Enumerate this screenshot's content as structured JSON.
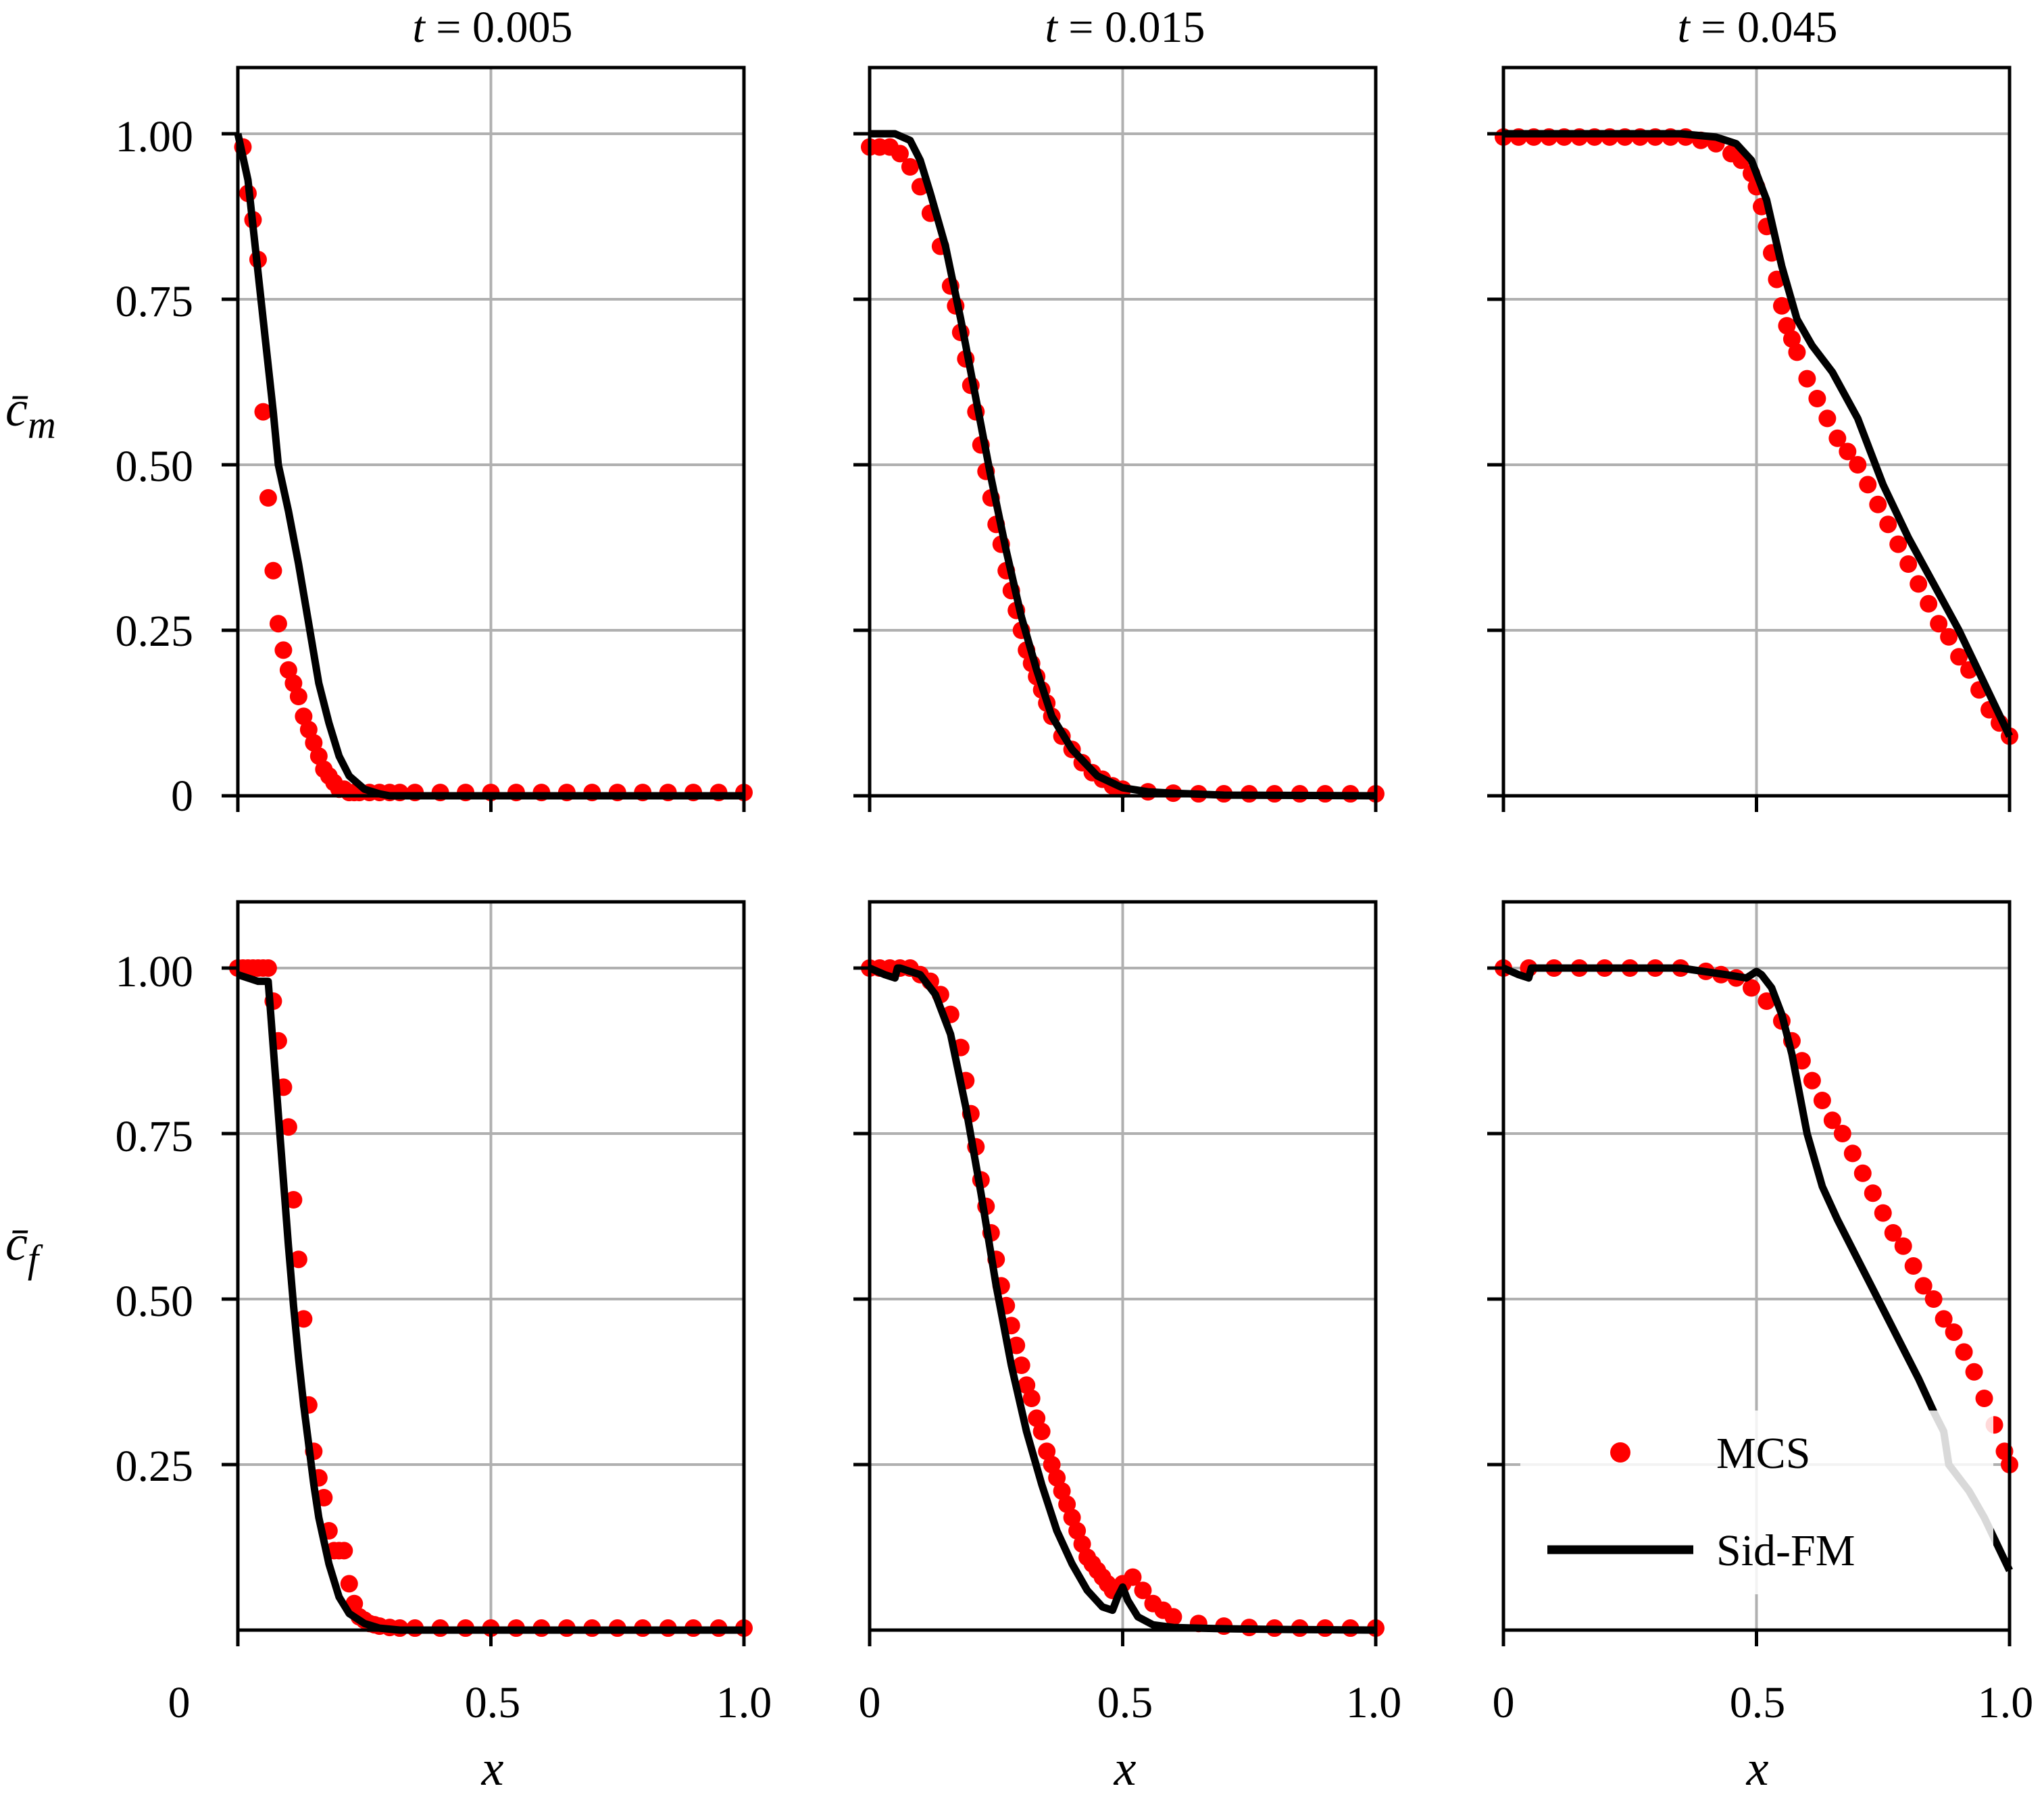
{
  "figure": {
    "colors": {
      "mcs": "#ff0000",
      "sid_fm": "#000000",
      "grid": "#b0b0b0",
      "frame": "#000000"
    },
    "col_titles": [
      {
        "t_label": "t",
        "value_label": " = 0.005"
      },
      {
        "t_label": "t",
        "value_label": " = 0.015"
      },
      {
        "t_label": "t",
        "value_label": " = 0.045"
      }
    ],
    "row_ylabels": [
      {
        "base": "c̄",
        "sub": "m"
      },
      {
        "base": "c̄",
        "sub": "f"
      }
    ],
    "xlabel": "x",
    "x_tick_labels": [
      "0",
      "0.5",
      "1.0"
    ],
    "y_tick_labels_top": [
      "0",
      "0.25",
      "0.50",
      "0.75",
      "1.00"
    ],
    "y_tick_labels_bottom": [
      "0.25",
      "0.50",
      "0.75",
      "1.00"
    ],
    "legend": {
      "mcs_label": "MCS",
      "sid_label": "Sid-FM",
      "position": "lower-right of bottom-right panel"
    }
  },
  "chart_data": [
    {
      "id": "cm_t0.005",
      "type": "line+scatter",
      "row": 0,
      "col": 0,
      "title": "t = 0.005",
      "xlabel": "",
      "ylabel": "c̄_m",
      "xlim": [
        0,
        1
      ],
      "ylim": [
        0,
        1.1
      ],
      "x_ticks": [
        0,
        0.5,
        1.0
      ],
      "y_ticks": [
        0,
        0.25,
        0.5,
        0.75,
        1.0
      ],
      "grid": true,
      "series": [
        {
          "name": "Sid-FM",
          "style": "line",
          "x": [
            0.0,
            0.02,
            0.05,
            0.07,
            0.08,
            0.1,
            0.12,
            0.14,
            0.16,
            0.18,
            0.2,
            0.22,
            0.25,
            0.28,
            0.3,
            1.0
          ],
          "y": [
            1.0,
            0.93,
            0.72,
            0.58,
            0.5,
            0.43,
            0.35,
            0.26,
            0.17,
            0.11,
            0.06,
            0.03,
            0.01,
            0.003,
            0.0,
            0.0
          ]
        },
        {
          "name": "MCS",
          "style": "markers",
          "x": [
            0.01,
            0.02,
            0.03,
            0.04,
            0.05,
            0.06,
            0.07,
            0.08,
            0.09,
            0.1,
            0.11,
            0.12,
            0.13,
            0.14,
            0.15,
            0.16,
            0.17,
            0.18,
            0.19,
            0.2,
            0.21,
            0.22,
            0.23,
            0.24,
            0.26,
            0.28,
            0.3,
            0.32,
            0.35,
            0.4,
            0.45,
            0.5,
            0.55,
            0.6,
            0.65,
            0.7,
            0.75,
            0.8,
            0.85,
            0.9,
            0.95,
            1.0
          ],
          "y": [
            0.98,
            0.91,
            0.87,
            0.81,
            0.58,
            0.45,
            0.34,
            0.26,
            0.22,
            0.19,
            0.17,
            0.15,
            0.12,
            0.1,
            0.08,
            0.06,
            0.04,
            0.03,
            0.02,
            0.01,
            0.01,
            0.005,
            0.005,
            0.005,
            0.005,
            0.005,
            0.005,
            0.005,
            0.005,
            0.005,
            0.005,
            0.005,
            0.005,
            0.005,
            0.005,
            0.005,
            0.005,
            0.005,
            0.005,
            0.005,
            0.005,
            0.005
          ]
        }
      ]
    },
    {
      "id": "cm_t0.015",
      "type": "line+scatter",
      "row": 0,
      "col": 1,
      "title": "t = 0.015",
      "xlabel": "",
      "ylabel": "",
      "xlim": [
        0,
        1
      ],
      "ylim": [
        0,
        1.1
      ],
      "x_ticks": [
        0,
        0.5,
        1.0
      ],
      "y_ticks": [
        0,
        0.25,
        0.5,
        0.75,
        1.0
      ],
      "grid": true,
      "series": [
        {
          "name": "Sid-FM",
          "style": "line",
          "x": [
            0.0,
            0.05,
            0.08,
            0.1,
            0.12,
            0.15,
            0.18,
            0.21,
            0.24,
            0.27,
            0.3,
            0.33,
            0.36,
            0.4,
            0.45,
            0.5,
            0.55,
            0.6,
            0.7,
            1.0
          ],
          "y": [
            1.0,
            1.0,
            0.99,
            0.96,
            0.91,
            0.83,
            0.72,
            0.6,
            0.48,
            0.37,
            0.27,
            0.19,
            0.12,
            0.07,
            0.03,
            0.012,
            0.006,
            0.004,
            0.001,
            0.0
          ]
        },
        {
          "name": "MCS",
          "style": "markers",
          "x": [
            0.0,
            0.02,
            0.04,
            0.06,
            0.08,
            0.1,
            0.12,
            0.14,
            0.16,
            0.17,
            0.18,
            0.19,
            0.2,
            0.21,
            0.22,
            0.23,
            0.24,
            0.25,
            0.26,
            0.27,
            0.28,
            0.29,
            0.3,
            0.31,
            0.32,
            0.33,
            0.34,
            0.35,
            0.36,
            0.38,
            0.4,
            0.42,
            0.44,
            0.46,
            0.48,
            0.5,
            0.55,
            0.6,
            0.65,
            0.7,
            0.75,
            0.8,
            0.85,
            0.9,
            0.95,
            1.0
          ],
          "y": [
            0.98,
            0.98,
            0.98,
            0.97,
            0.95,
            0.92,
            0.88,
            0.83,
            0.77,
            0.74,
            0.7,
            0.66,
            0.62,
            0.58,
            0.53,
            0.49,
            0.45,
            0.41,
            0.38,
            0.34,
            0.31,
            0.28,
            0.25,
            0.22,
            0.2,
            0.18,
            0.16,
            0.14,
            0.12,
            0.09,
            0.07,
            0.05,
            0.035,
            0.025,
            0.015,
            0.01,
            0.006,
            0.004,
            0.003,
            0.003,
            0.003,
            0.003,
            0.003,
            0.003,
            0.003,
            0.003
          ]
        }
      ]
    },
    {
      "id": "cm_t0.045",
      "type": "line+scatter",
      "row": 0,
      "col": 2,
      "title": "t = 0.045",
      "xlabel": "",
      "ylabel": "",
      "xlim": [
        0,
        1
      ],
      "ylim": [
        0,
        1.1
      ],
      "x_ticks": [
        0,
        0.5,
        1.0
      ],
      "y_ticks": [
        0,
        0.25,
        0.5,
        0.75,
        1.0
      ],
      "grid": true,
      "series": [
        {
          "name": "Sid-FM",
          "style": "line",
          "x": [
            0.0,
            0.2,
            0.35,
            0.42,
            0.46,
            0.49,
            0.52,
            0.55,
            0.58,
            0.61,
            0.65,
            0.7,
            0.75,
            0.8,
            0.85,
            0.9,
            0.95,
            1.0
          ],
          "y": [
            1.0,
            1.0,
            1.0,
            0.995,
            0.985,
            0.96,
            0.9,
            0.8,
            0.72,
            0.68,
            0.64,
            0.57,
            0.47,
            0.39,
            0.32,
            0.25,
            0.17,
            0.09
          ]
        },
        {
          "name": "MCS",
          "style": "markers",
          "x": [
            0.0,
            0.03,
            0.06,
            0.09,
            0.12,
            0.15,
            0.18,
            0.21,
            0.24,
            0.27,
            0.3,
            0.33,
            0.36,
            0.39,
            0.42,
            0.45,
            0.47,
            0.49,
            0.5,
            0.51,
            0.52,
            0.53,
            0.54,
            0.55,
            0.56,
            0.57,
            0.58,
            0.6,
            0.62,
            0.64,
            0.66,
            0.68,
            0.7,
            0.72,
            0.74,
            0.76,
            0.78,
            0.8,
            0.82,
            0.84,
            0.86,
            0.88,
            0.9,
            0.92,
            0.94,
            0.96,
            0.98,
            1.0
          ],
          "y": [
            0.995,
            0.995,
            0.995,
            0.995,
            0.995,
            0.995,
            0.995,
            0.995,
            0.995,
            0.995,
            0.995,
            0.995,
            0.995,
            0.99,
            0.985,
            0.97,
            0.96,
            0.94,
            0.92,
            0.89,
            0.86,
            0.82,
            0.78,
            0.74,
            0.71,
            0.69,
            0.67,
            0.63,
            0.6,
            0.57,
            0.54,
            0.52,
            0.5,
            0.47,
            0.44,
            0.41,
            0.38,
            0.35,
            0.32,
            0.29,
            0.26,
            0.24,
            0.21,
            0.19,
            0.16,
            0.13,
            0.11,
            0.09
          ]
        }
      ]
    },
    {
      "id": "cf_t0.005",
      "type": "line+scatter",
      "row": 1,
      "col": 0,
      "title": "",
      "xlabel": "x",
      "ylabel": "c̄_f",
      "xlim": [
        0,
        1
      ],
      "ylim": [
        0,
        1.1
      ],
      "x_ticks": [
        0,
        0.5,
        1.0
      ],
      "y_ticks": [
        0.25,
        0.5,
        0.75,
        1.0
      ],
      "grid": true,
      "series": [
        {
          "name": "Sid-FM",
          "style": "line",
          "x": [
            0.0,
            0.04,
            0.06,
            0.065,
            0.07,
            0.08,
            0.09,
            0.1,
            0.11,
            0.12,
            0.13,
            0.14,
            0.15,
            0.16,
            0.18,
            0.2,
            0.22,
            0.25,
            0.28,
            0.32,
            0.36,
            0.4,
            1.0
          ],
          "y": [
            0.99,
            0.98,
            0.98,
            0.93,
            0.88,
            0.78,
            0.68,
            0.58,
            0.49,
            0.41,
            0.34,
            0.28,
            0.22,
            0.17,
            0.1,
            0.05,
            0.025,
            0.01,
            0.003,
            0.0,
            0.0,
            0.0,
            0.0
          ]
        },
        {
          "name": "MCS",
          "style": "markers",
          "x": [
            0.0,
            0.01,
            0.02,
            0.03,
            0.04,
            0.05,
            0.06,
            0.07,
            0.08,
            0.09,
            0.1,
            0.11,
            0.12,
            0.13,
            0.14,
            0.15,
            0.16,
            0.17,
            0.18,
            0.19,
            0.2,
            0.21,
            0.22,
            0.23,
            0.24,
            0.25,
            0.26,
            0.27,
            0.28,
            0.3,
            0.32,
            0.35,
            0.4,
            0.45,
            0.5,
            0.55,
            0.6,
            0.65,
            0.7,
            0.75,
            0.8,
            0.85,
            0.9,
            0.95,
            1.0
          ],
          "y": [
            1.0,
            1.0,
            1.0,
            1.0,
            1.0,
            1.0,
            1.0,
            0.95,
            0.89,
            0.82,
            0.76,
            0.65,
            0.56,
            0.47,
            0.34,
            0.27,
            0.23,
            0.2,
            0.15,
            0.12,
            0.12,
            0.12,
            0.07,
            0.04,
            0.02,
            0.015,
            0.01,
            0.008,
            0.006,
            0.004,
            0.003,
            0.003,
            0.003,
            0.003,
            0.003,
            0.003,
            0.003,
            0.003,
            0.003,
            0.003,
            0.003,
            0.003,
            0.003,
            0.003,
            0.003
          ]
        }
      ]
    },
    {
      "id": "cf_t0.015",
      "type": "line+scatter",
      "row": 1,
      "col": 1,
      "title": "",
      "xlabel": "x",
      "ylabel": "",
      "xlim": [
        0,
        1
      ],
      "ylim": [
        0,
        1.1
      ],
      "x_ticks": [
        0,
        0.5,
        1.0
      ],
      "y_ticks": [
        0.25,
        0.5,
        0.75,
        1.0
      ],
      "grid": true,
      "series": [
        {
          "name": "Sid-FM",
          "style": "line",
          "x": [
            0.0,
            0.03,
            0.05,
            0.055,
            0.06,
            0.1,
            0.13,
            0.16,
            0.19,
            0.22,
            0.25,
            0.28,
            0.31,
            0.34,
            0.37,
            0.4,
            0.43,
            0.46,
            0.48,
            0.49,
            0.5,
            0.51,
            0.53,
            0.56,
            0.6,
            0.65,
            0.7,
            0.8,
            1.0
          ],
          "y": [
            1.0,
            0.99,
            0.985,
            1.0,
            1.0,
            0.99,
            0.96,
            0.9,
            0.79,
            0.66,
            0.52,
            0.4,
            0.3,
            0.22,
            0.15,
            0.1,
            0.06,
            0.035,
            0.03,
            0.05,
            0.065,
            0.045,
            0.02,
            0.008,
            0.004,
            0.003,
            0.002,
            0.001,
            0.0
          ]
        },
        {
          "name": "MCS",
          "style": "markers",
          "x": [
            0.0,
            0.02,
            0.04,
            0.06,
            0.08,
            0.1,
            0.12,
            0.14,
            0.16,
            0.18,
            0.19,
            0.2,
            0.21,
            0.22,
            0.23,
            0.24,
            0.25,
            0.26,
            0.27,
            0.28,
            0.29,
            0.3,
            0.31,
            0.32,
            0.33,
            0.34,
            0.35,
            0.36,
            0.37,
            0.38,
            0.39,
            0.4,
            0.41,
            0.42,
            0.43,
            0.44,
            0.45,
            0.46,
            0.47,
            0.48,
            0.5,
            0.52,
            0.54,
            0.56,
            0.58,
            0.6,
            0.65,
            0.7,
            0.75,
            0.8,
            0.85,
            0.9,
            0.95,
            1.0
          ],
          "y": [
            1.0,
            1.0,
            1.0,
            1.0,
            1.0,
            0.99,
            0.98,
            0.96,
            0.93,
            0.88,
            0.83,
            0.78,
            0.73,
            0.68,
            0.64,
            0.6,
            0.56,
            0.52,
            0.49,
            0.46,
            0.43,
            0.4,
            0.37,
            0.35,
            0.32,
            0.3,
            0.27,
            0.25,
            0.23,
            0.21,
            0.19,
            0.17,
            0.15,
            0.13,
            0.11,
            0.1,
            0.09,
            0.08,
            0.07,
            0.06,
            0.07,
            0.08,
            0.06,
            0.04,
            0.03,
            0.02,
            0.01,
            0.006,
            0.004,
            0.003,
            0.003,
            0.003,
            0.003,
            0.003
          ]
        }
      ]
    },
    {
      "id": "cf_t0.045",
      "type": "line+scatter",
      "row": 1,
      "col": 2,
      "title": "",
      "xlabel": "x",
      "ylabel": "",
      "xlim": [
        0,
        1
      ],
      "ylim": [
        0,
        1.1
      ],
      "x_ticks": [
        0,
        0.5,
        1.0
      ],
      "y_ticks": [
        0.25,
        0.5,
        0.75,
        1.0
      ],
      "grid": true,
      "series": [
        {
          "name": "Sid-FM",
          "style": "line",
          "x": [
            0.0,
            0.03,
            0.05,
            0.055,
            0.06,
            0.2,
            0.35,
            0.44,
            0.48,
            0.49,
            0.5,
            0.51,
            0.53,
            0.55,
            0.57,
            0.6,
            0.63,
            0.66,
            0.7,
            0.74,
            0.78,
            0.82,
            0.85,
            0.87,
            0.88,
            0.89,
            0.9,
            0.92,
            0.95,
            1.0
          ],
          "y": [
            1.0,
            0.99,
            0.985,
            1.0,
            1.0,
            1.0,
            1.0,
            0.99,
            0.985,
            0.99,
            0.995,
            0.99,
            0.97,
            0.93,
            0.87,
            0.75,
            0.67,
            0.62,
            0.56,
            0.5,
            0.44,
            0.38,
            0.33,
            0.3,
            0.25,
            0.24,
            0.23,
            0.21,
            0.17,
            0.09
          ]
        },
        {
          "name": "MCS",
          "style": "markers",
          "x": [
            0.0,
            0.05,
            0.1,
            0.15,
            0.2,
            0.25,
            0.3,
            0.35,
            0.4,
            0.43,
            0.46,
            0.49,
            0.52,
            0.55,
            0.57,
            0.59,
            0.61,
            0.63,
            0.65,
            0.67,
            0.69,
            0.71,
            0.73,
            0.75,
            0.77,
            0.79,
            0.81,
            0.83,
            0.85,
            0.87,
            0.89,
            0.91,
            0.93,
            0.95,
            0.97,
            0.99,
            1.0
          ],
          "y": [
            1.0,
            1.0,
            1.0,
            1.0,
            1.0,
            1.0,
            1.0,
            1.0,
            0.995,
            0.99,
            0.985,
            0.97,
            0.95,
            0.92,
            0.89,
            0.86,
            0.83,
            0.8,
            0.77,
            0.75,
            0.72,
            0.69,
            0.66,
            0.63,
            0.6,
            0.58,
            0.55,
            0.52,
            0.5,
            0.47,
            0.45,
            0.42,
            0.39,
            0.35,
            0.31,
            0.27,
            0.25
          ]
        }
      ]
    }
  ]
}
